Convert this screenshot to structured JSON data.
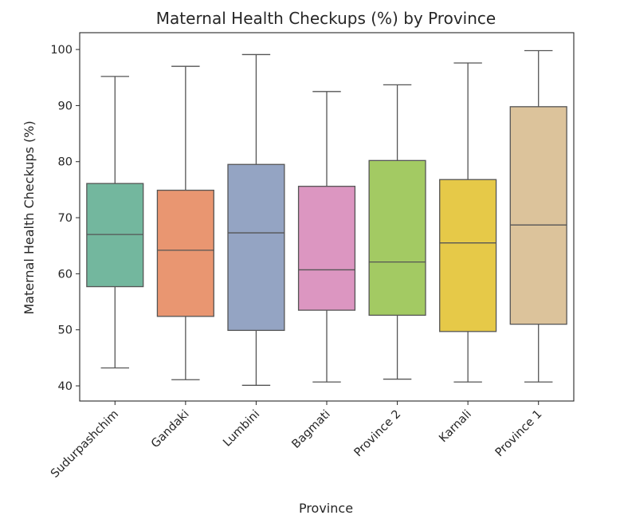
{
  "chart_data": {
    "type": "box",
    "title": "Maternal Health Checkups (%) by Province",
    "xlabel": "Province",
    "ylabel": "Maternal Health Checkups (%)",
    "ylim": [
      37.3,
      103.0
    ],
    "yticks": [
      40,
      50,
      60,
      70,
      80,
      90,
      100
    ],
    "ytick_labels": [
      "40",
      "50",
      "60",
      "70",
      "80",
      "90",
      "100"
    ],
    "grid": false,
    "categories": [
      "Sudurpashchim",
      "Gandaki",
      "Lumbini",
      "Bagmati",
      "Province 2",
      "Karnali",
      "Province 1"
    ],
    "colors": [
      "#73b79e",
      "#e99671",
      "#94a4c3",
      "#dc96c1",
      "#a3ca63",
      "#e6c948",
      "#dcc39b"
    ],
    "boxes": [
      {
        "min": 43.2,
        "q1": 57.7,
        "median": 67.0,
        "q3": 76.1,
        "max": 95.2
      },
      {
        "min": 41.1,
        "q1": 52.4,
        "median": 64.2,
        "q3": 74.9,
        "max": 97.0
      },
      {
        "min": 40.1,
        "q1": 49.9,
        "median": 67.3,
        "q3": 79.5,
        "max": 99.1
      },
      {
        "min": 40.7,
        "q1": 53.5,
        "median": 60.7,
        "q3": 75.6,
        "max": 92.5
      },
      {
        "min": 41.2,
        "q1": 52.6,
        "median": 62.1,
        "q3": 80.2,
        "max": 93.7
      },
      {
        "min": 40.7,
        "q1": 49.7,
        "median": 65.5,
        "q3": 76.8,
        "max": 97.6
      },
      {
        "min": 40.7,
        "q1": 51.0,
        "median": 68.7,
        "q3": 89.8,
        "max": 99.8
      }
    ]
  }
}
